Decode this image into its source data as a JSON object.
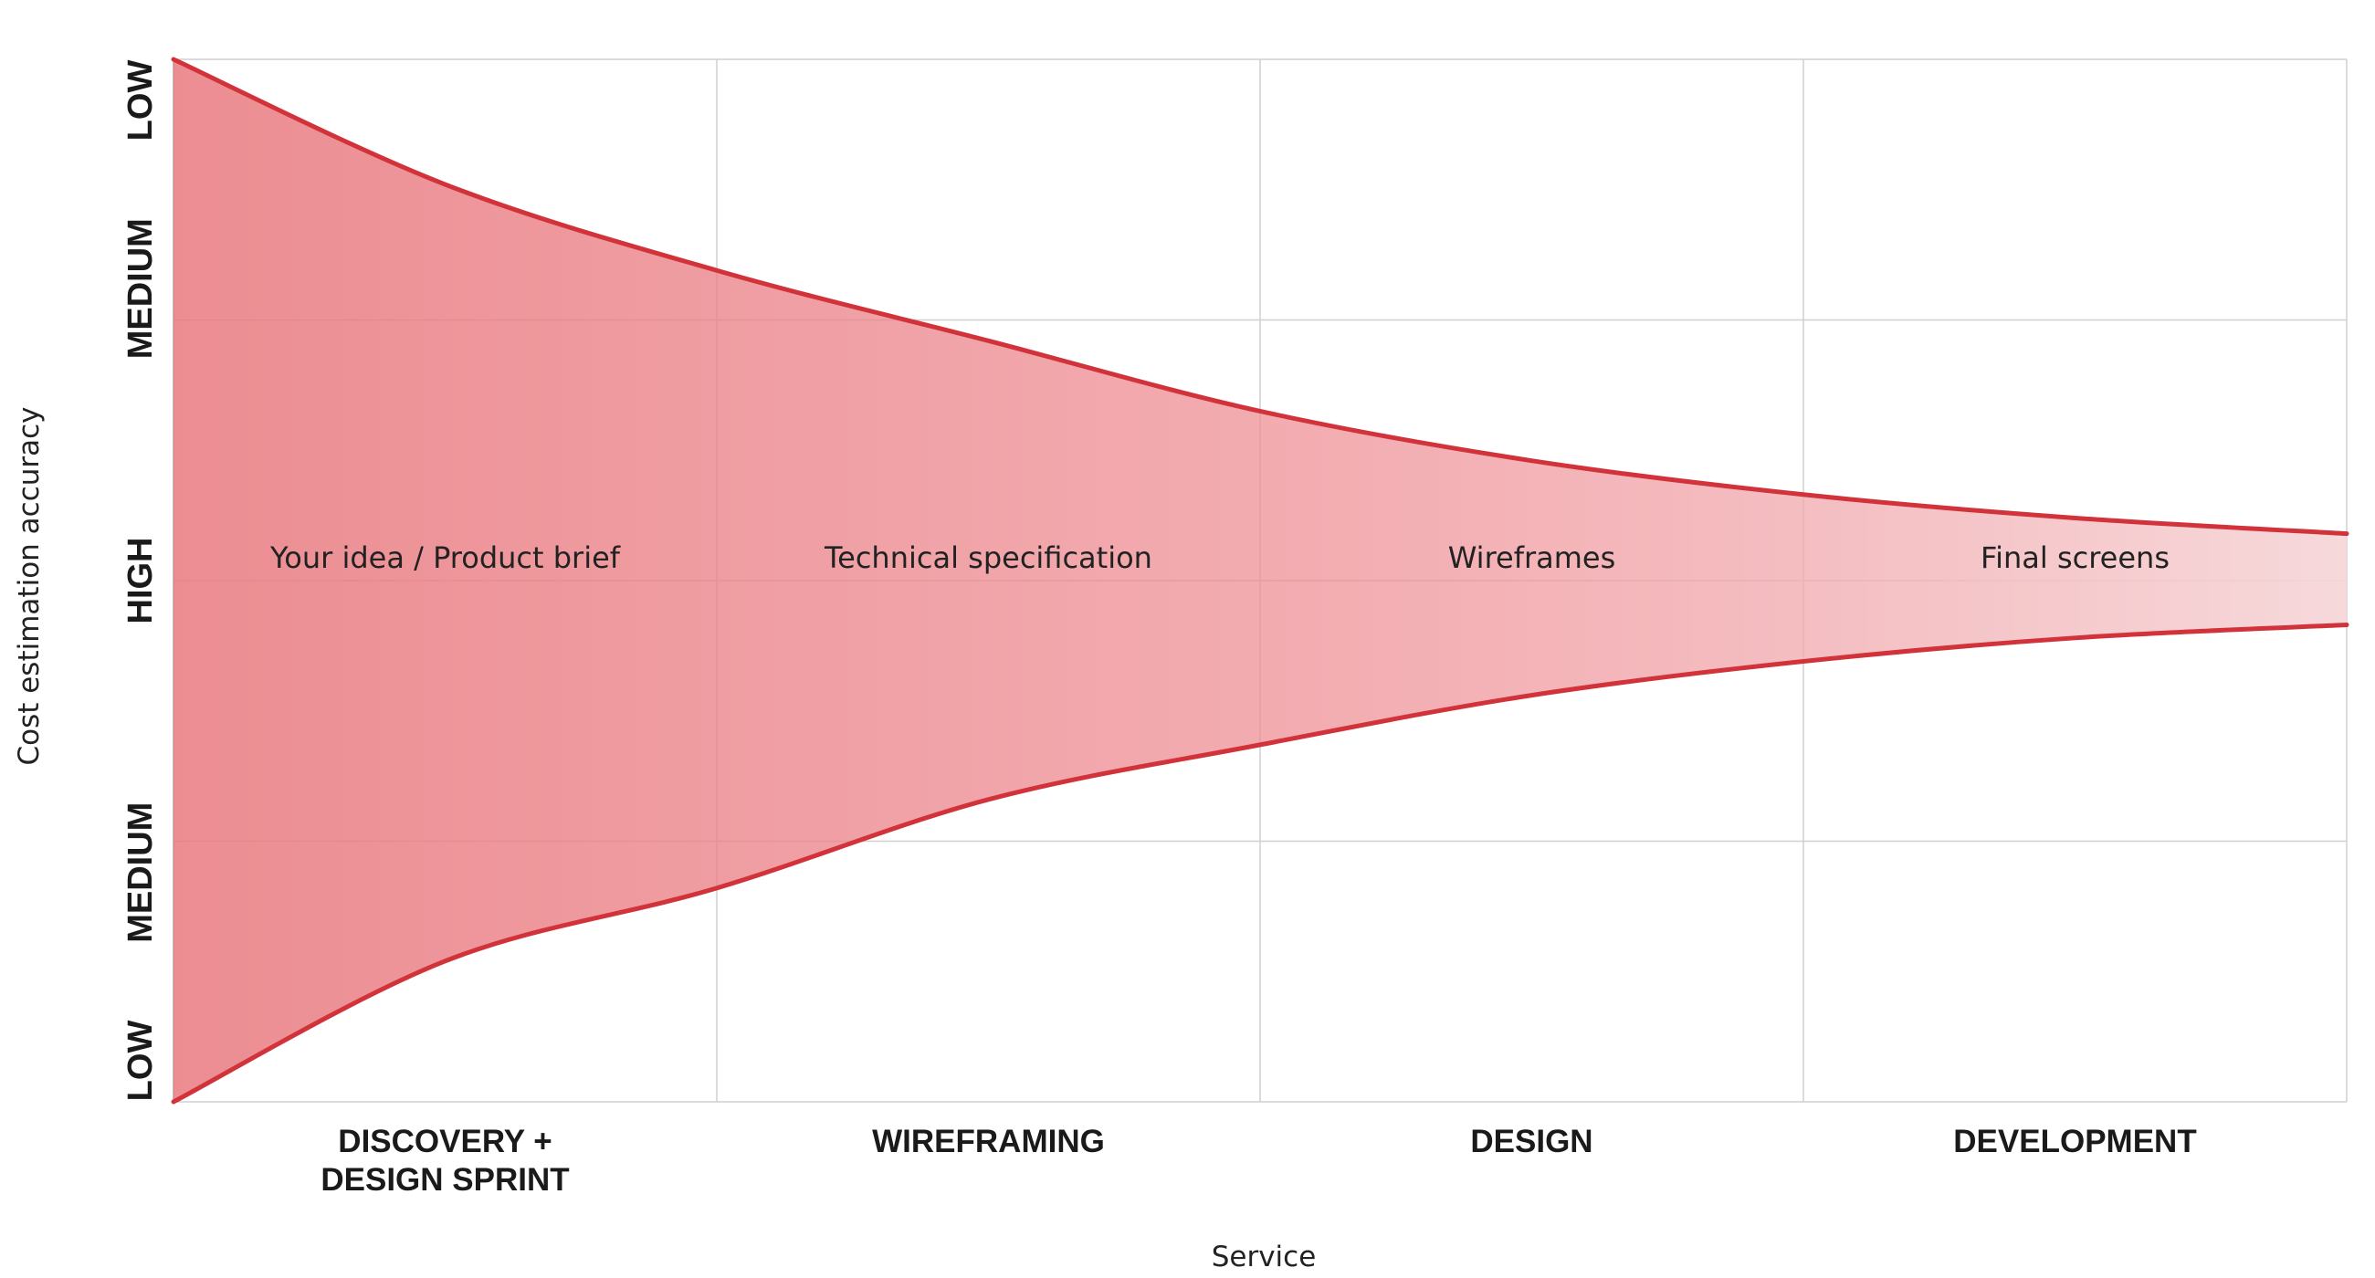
{
  "chart_data": {
    "type": "area",
    "xlabel": "Service",
    "ylabel": "Cost estimation accuracy",
    "y_levels": [
      "LOW",
      "MEDIUM",
      "HIGH",
      "MEDIUM",
      "LOW"
    ],
    "categories": [
      "DISCOVERY +\nDESIGN SPRINT",
      "WIREFRAMING",
      "DESIGN",
      "DEVELOPMENT"
    ],
    "stages": [
      "Your idea / Product brief",
      "Technical specification",
      "Wireframes",
      "Final screens"
    ],
    "xlim": [
      0,
      4
    ],
    "ylim": [
      -2,
      2
    ],
    "grid": true,
    "series": [
      {
        "x": [
          0,
          0.5,
          1,
          1.5,
          2,
          2.5,
          3,
          3.5,
          4
        ],
        "values": [
          2,
          1.52,
          1.19,
          0.92,
          0.65,
          0.46,
          0.33,
          0.24,
          0.18
        ]
      },
      {
        "x": [
          0,
          0.5,
          1,
          1.5,
          2,
          2.5,
          3,
          3.5,
          4
        ],
        "values": [
          -2,
          -1.46,
          -1.18,
          -0.84,
          -0.63,
          -0.44,
          -0.31,
          -0.22,
          -0.17
        ]
      }
    ],
    "colors": {
      "edge": "#d2323a",
      "fill": "#e8797f",
      "fill_light": "#f6d5d7",
      "grid": "#cfcfcf",
      "axis": "#bdbdbd"
    }
  }
}
